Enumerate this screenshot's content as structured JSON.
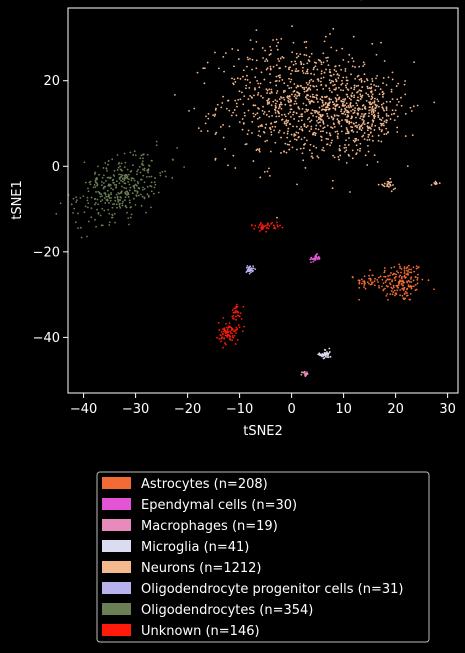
{
  "chart_data": {
    "type": "scatter",
    "xlabel": "tSNE2",
    "ylabel": "tSNE1",
    "xlim": [
      -43,
      32
    ],
    "ylim": [
      -53,
      37
    ],
    "xticks": [
      -40,
      -30,
      -20,
      -10,
      0,
      10,
      20,
      30
    ],
    "yticks": [
      20,
      0,
      -20,
      -40
    ],
    "grid": false,
    "legend_placement": "below",
    "background": "#000000",
    "series": [
      {
        "name": "Astrocytes (n=208)",
        "color": "#f26b35",
        "clusters": [
          {
            "x": 21,
            "y": -27,
            "sx": 2.3,
            "sy": 2.4,
            "n": 170
          },
          {
            "x": 15,
            "y": -27,
            "sx": 1.3,
            "sy": 1.0,
            "n": 38
          }
        ]
      },
      {
        "name": "Ependymal cells (n=30)",
        "color": "#e455d6",
        "clusters": [
          {
            "x": 4.5,
            "y": -21.5,
            "sx": 0.5,
            "sy": 0.4,
            "n": 30
          }
        ]
      },
      {
        "name": "Macrophages (n=19)",
        "color": "#e88bbb",
        "clusters": [
          {
            "x": 2.5,
            "y": -48.5,
            "sx": 0.25,
            "sy": 0.3,
            "n": 19
          }
        ]
      },
      {
        "name": "Microglia (n=41)",
        "color": "#dcdcf0",
        "clusters": [
          {
            "x": 6.5,
            "y": -44,
            "sx": 0.55,
            "sy": 0.6,
            "n": 41
          }
        ]
      },
      {
        "name": "Neurons (n=1212)",
        "color": "#f5b98e",
        "clusters": [
          {
            "x": 1,
            "y": 15,
            "sx": 7.5,
            "sy": 7,
            "n": 760
          },
          {
            "x": 13,
            "y": 13,
            "sx": 4.5,
            "sy": 4.5,
            "n": 420
          },
          {
            "x": 18.5,
            "y": -4.5,
            "sx": 0.8,
            "sy": 0.6,
            "n": 22
          },
          {
            "x": 27.8,
            "y": -4,
            "sx": 0.3,
            "sy": 0.2,
            "n": 10
          }
        ]
      },
      {
        "name": "Oligodendrocyte progenitor cells (n=31)",
        "color": "#b8b2ee",
        "clusters": [
          {
            "x": -8,
            "y": -24,
            "sx": 0.35,
            "sy": 0.5,
            "n": 31
          }
        ]
      },
      {
        "name": "Oligodendrocytes (n=354)",
        "color": "#6b7f55",
        "clusters": [
          {
            "x": -33,
            "y": -5,
            "sx": 3.0,
            "sy": 5.0,
            "n": 354,
            "tilt": -0.85
          }
        ]
      },
      {
        "name": "Unknown (n=146)",
        "color": "#ff1a0a",
        "clusters": [
          {
            "x": -12,
            "y": -39,
            "sx": 1.0,
            "sy": 1.3,
            "n": 80
          },
          {
            "x": -5,
            "y": -14,
            "sx": 1.4,
            "sy": 0.45,
            "n": 40
          },
          {
            "x": -10.5,
            "y": -34,
            "sx": 0.5,
            "sy": 1.0,
            "n": 26
          }
        ]
      }
    ]
  }
}
